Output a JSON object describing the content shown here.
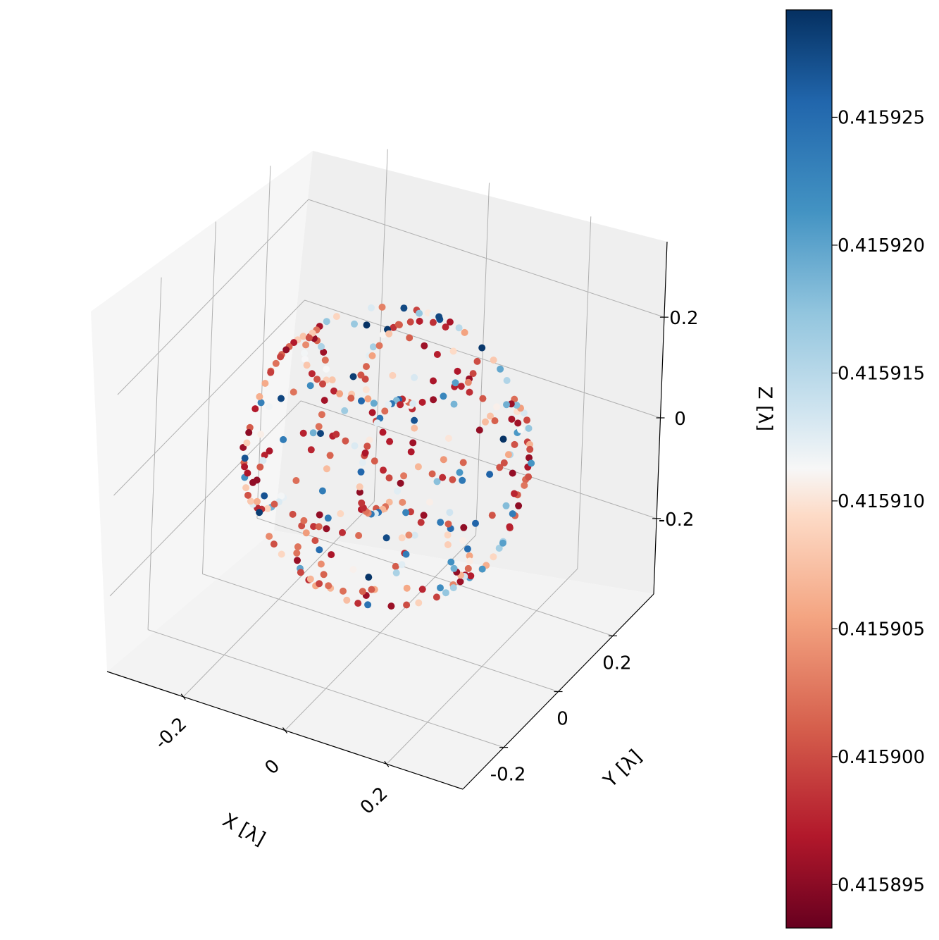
{
  "chart_data": {
    "type": "scatter",
    "projection": "3d",
    "xlabel": "X [λ]",
    "ylabel": "Y [λ]",
    "zlabel": "Z [λ]",
    "xlim": [
      -0.35,
      0.35
    ],
    "ylim": [
      -0.35,
      0.35
    ],
    "zlim": [
      -0.35,
      0.35
    ],
    "x_ticks": [
      {
        "v": -0.2,
        "label": "-0.2"
      },
      {
        "v": 0,
        "label": "0"
      },
      {
        "v": 0.2,
        "label": "0.2"
      }
    ],
    "y_ticks": [
      {
        "v": -0.2,
        "label": "-0.2"
      },
      {
        "v": 0,
        "label": "0"
      },
      {
        "v": 0.2,
        "label": "0.2"
      }
    ],
    "z_ticks": [
      {
        "v": -0.2,
        "label": "-0.2"
      },
      {
        "v": 0,
        "label": "0"
      },
      {
        "v": 0.2,
        "label": "0.2"
      }
    ],
    "grid": true,
    "colormap": "RdBu",
    "color_range": [
      0.4158933,
      0.4159292
    ],
    "colorbar_ticks": [
      {
        "v": 0.415895,
        "label": "0.415895"
      },
      {
        "v": 0.4159,
        "label": "0.415900"
      },
      {
        "v": 0.415905,
        "label": "0.415905"
      },
      {
        "v": 0.41591,
        "label": "0.415910"
      },
      {
        "v": 0.415915,
        "label": "0.415915"
      },
      {
        "v": 0.41592,
        "label": "0.415920"
      },
      {
        "v": 0.415925,
        "label": "0.415925"
      }
    ],
    "colorbar_placement": "right",
    "rings": [
      {
        "axis": "x",
        "pos": 0.0,
        "radius": 0.25
      },
      {
        "axis": "y",
        "pos": 0.0,
        "radius": 0.25
      },
      {
        "axis": "z",
        "pos": 0.0,
        "radius": 0.25
      },
      {
        "axis": "x",
        "pos": 0.2,
        "radius": 0.15
      },
      {
        "axis": "x",
        "pos": -0.2,
        "radius": 0.15
      },
      {
        "axis": "y",
        "pos": 0.2,
        "radius": 0.15
      },
      {
        "axis": "y",
        "pos": -0.2,
        "radius": 0.15
      },
      {
        "axis": "z",
        "pos": 0.2,
        "radius": 0.15
      },
      {
        "axis": "z",
        "pos": -0.2,
        "radius": 0.15
      },
      {
        "axis": "x",
        "pos": 0.0,
        "radius": 0.1
      }
    ],
    "points_per_ring": 44,
    "point_fraction": 0.8,
    "value_weights": {
      "low_red": 0.45,
      "mid_light": 0.3,
      "high_blue": 0.25
    }
  }
}
